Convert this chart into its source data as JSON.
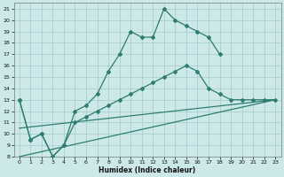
{
  "xlabel": "Humidex (Indice chaleur)",
  "bg_color": "#cce8e8",
  "grid_color": "#aacfcf",
  "line_color": "#2e7d6e",
  "xlim": [
    -0.5,
    23.5
  ],
  "ylim": [
    8,
    21.5
  ],
  "xticks": [
    0,
    1,
    2,
    3,
    4,
    5,
    6,
    7,
    8,
    9,
    10,
    11,
    12,
    13,
    14,
    15,
    16,
    17,
    18,
    19,
    20,
    21,
    22,
    23
  ],
  "yticks": [
    8,
    9,
    10,
    11,
    12,
    13,
    14,
    15,
    16,
    17,
    18,
    19,
    20,
    21
  ],
  "line1_x": [
    0,
    1,
    2,
    3,
    4,
    5,
    6,
    7,
    8,
    9,
    10,
    11,
    12,
    13,
    14,
    15,
    16,
    17,
    18
  ],
  "line1_y": [
    13,
    9.5,
    10,
    8,
    9,
    12,
    12.5,
    13.5,
    15.5,
    17,
    19,
    18.5,
    18.5,
    21,
    20,
    19.5,
    19,
    18.5,
    17
  ],
  "line2_x": [
    0,
    1,
    2,
    3,
    4,
    5,
    6,
    7,
    8,
    9,
    10,
    11,
    12,
    13,
    14,
    15,
    16,
    17,
    18,
    19,
    20,
    21,
    22,
    23
  ],
  "line2_y": [
    13,
    9.5,
    10,
    8,
    9,
    11,
    11.5,
    12,
    12.5,
    13,
    13.5,
    14,
    14.5,
    15,
    15.5,
    16,
    15.5,
    14,
    13.5,
    13,
    13,
    13,
    13,
    13
  ],
  "line3_x": [
    0,
    23
  ],
  "line3_y": [
    8,
    13
  ],
  "line4_x": [
    0,
    23
  ],
  "line4_y": [
    10.5,
    13
  ]
}
